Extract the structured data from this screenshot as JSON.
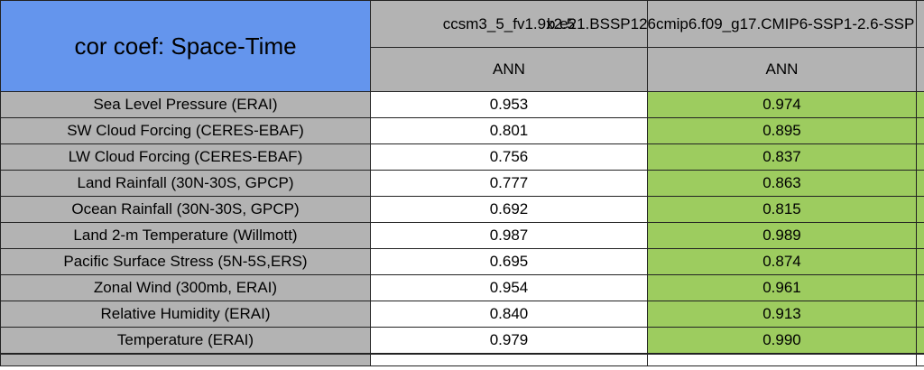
{
  "title": "cor coef: Space-Time",
  "models": [
    {
      "name": "ccsm3_5_fv1.9x2.5",
      "season": "ANN"
    },
    {
      "name": "b.e21.BSSP126cmip6.f09_g17.CMIP6-SSP1-2.6-SSP",
      "season": "ANN",
      "note": "run name clipped at right screenshot edge"
    }
  ],
  "rows": [
    {
      "label": "Sea Level Pressure (ERAI)",
      "values": [
        "0.953",
        "0.974"
      ]
    },
    {
      "label": "SW Cloud Forcing (CERES-EBAF)",
      "values": [
        "0.801",
        "0.895"
      ]
    },
    {
      "label": "LW Cloud Forcing (CERES-EBAF)",
      "values": [
        "0.756",
        "0.837"
      ]
    },
    {
      "label": "Land Rainfall (30N-30S, GPCP)",
      "values": [
        "0.777",
        "0.863"
      ]
    },
    {
      "label": "Ocean Rainfall (30N-30S, GPCP)",
      "values": [
        "0.692",
        "0.815"
      ]
    },
    {
      "label": "Land 2-m Temperature (Willmott)",
      "values": [
        "0.987",
        "0.989"
      ]
    },
    {
      "label": "Pacific Surface Stress (5N-5S,ERS)",
      "values": [
        "0.695",
        "0.874"
      ]
    },
    {
      "label": "Zonal Wind (300mb, ERAI)",
      "values": [
        "0.954",
        "0.961"
      ]
    },
    {
      "label": "Relative Humidity (ERAI)",
      "values": [
        "0.840",
        "0.913"
      ]
    },
    {
      "label": "Temperature (ERAI)",
      "values": [
        "0.979",
        "0.990"
      ]
    }
  ],
  "colors": {
    "title_bg": "#6495ED",
    "header_bg": "#B3B3B3",
    "label_bg": "#B3B3B3",
    "value1_bg": "#FFFFFF",
    "value2_bg": "#9DCC5F",
    "border": "#222222",
    "text": "#000000"
  },
  "chart_data": {
    "type": "table",
    "title": "cor coef: Space-Time",
    "columns": [
      "",
      "ccsm3_5_fv1.9x2.5 ANN",
      "b.e21.BSSP126cmip6.f09_g17.CMIP6-SSP1-2.6-SSP ANN"
    ],
    "rows": [
      [
        "Sea Level Pressure (ERAI)",
        0.953,
        0.974
      ],
      [
        "SW Cloud Forcing (CERES-EBAF)",
        0.801,
        0.895
      ],
      [
        "LW Cloud Forcing (CERES-EBAF)",
        0.756,
        0.837
      ],
      [
        "Land Rainfall (30N-30S, GPCP)",
        0.777,
        0.863
      ],
      [
        "Ocean Rainfall (30N-30S, GPCP)",
        0.692,
        0.815
      ],
      [
        "Land 2-m Temperature (Willmott)",
        0.987,
        0.989
      ],
      [
        "Pacific Surface Stress (5N-5S,ERS)",
        0.695,
        0.874
      ],
      [
        "Zonal Wind (300mb, ERAI)",
        0.954,
        0.961
      ],
      [
        "Relative Humidity (ERAI)",
        0.84,
        0.913
      ],
      [
        "Temperature (ERAI)",
        0.979,
        0.99
      ]
    ]
  }
}
